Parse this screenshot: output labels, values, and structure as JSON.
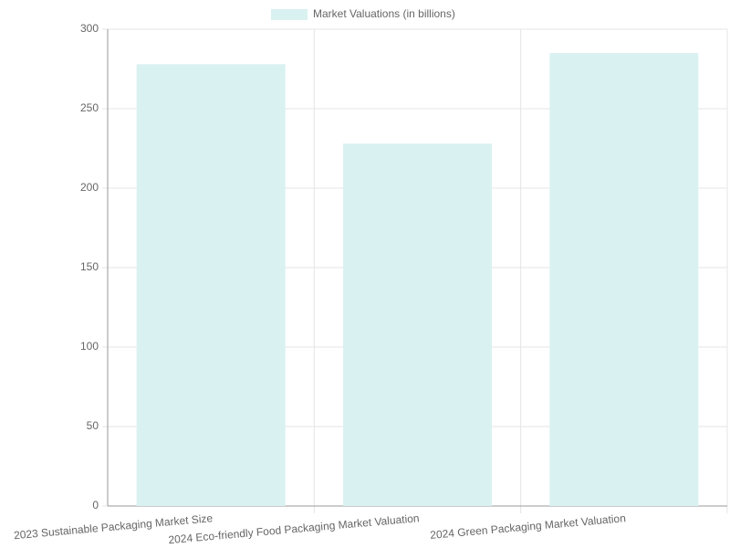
{
  "chart_data": {
    "type": "bar",
    "categories": [
      "2023 Sustainable Packaging Market Size",
      "2024 Eco-friendly Food Packaging Market Valuation",
      "2024 Green Packaging Market Valuation"
    ],
    "series": [
      {
        "name": "Market Valuations (in billions)",
        "color": "#d9f1f1",
        "values": [
          278,
          228,
          285
        ]
      }
    ],
    "ylim": [
      0,
      300
    ],
    "yticks": [
      0,
      50,
      100,
      150,
      200,
      250,
      300
    ],
    "grid": true,
    "legend": "top"
  }
}
